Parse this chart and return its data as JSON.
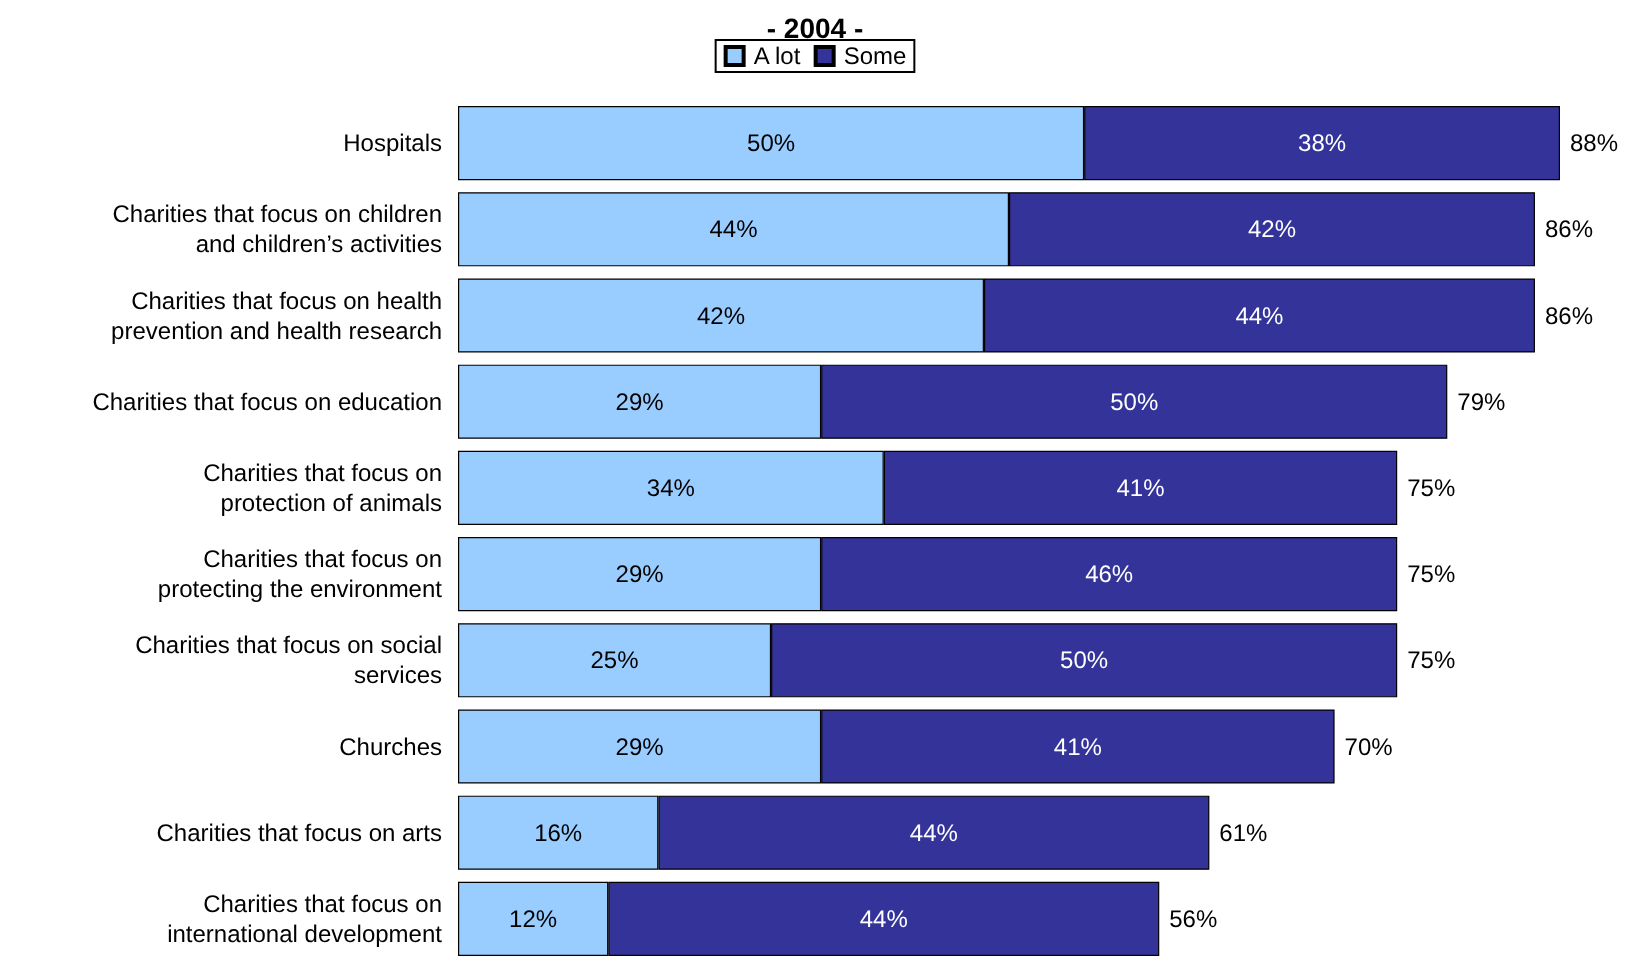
{
  "chart_data": {
    "type": "bar",
    "title": "- 2004 -",
    "orientation": "horizontal",
    "stacked": true,
    "legend": "top",
    "categories": [
      "Hospitals",
      "Charities that focus on children\nand children’s activities",
      "Charities that focus on health\nprevention and health research",
      "Charities that focus on education",
      "Charities that focus on\nprotection of animals",
      "Charities that focus on\nprotecting the environment",
      "Charities that focus on social\nservices",
      "Churches",
      "Charities that focus on arts",
      "Charities that focus on\ninternational development"
    ],
    "series": [
      {
        "name": "A lot",
        "color": "#99ccff",
        "values": [
          50,
          44,
          42,
          29,
          34,
          29,
          25,
          29,
          16,
          12
        ],
        "value_labels": [
          "50%",
          "44%",
          "42%",
          "29%",
          "34%",
          "29%",
          "25%",
          "29%",
          "16%",
          "12%"
        ]
      },
      {
        "name": "Some",
        "color": "#333399",
        "values": [
          38,
          42,
          44,
          50,
          41,
          46,
          50,
          41,
          44,
          44
        ],
        "value_labels": [
          "38%",
          "42%",
          "44%",
          "50%",
          "41%",
          "46%",
          "50%",
          "41%",
          "44%",
          "44%"
        ]
      }
    ],
    "totals": [
      "88%",
      "86%",
      "86%",
      "79%",
      "75%",
      "75%",
      "75%",
      "70%",
      "61%",
      "56%"
    ]
  }
}
